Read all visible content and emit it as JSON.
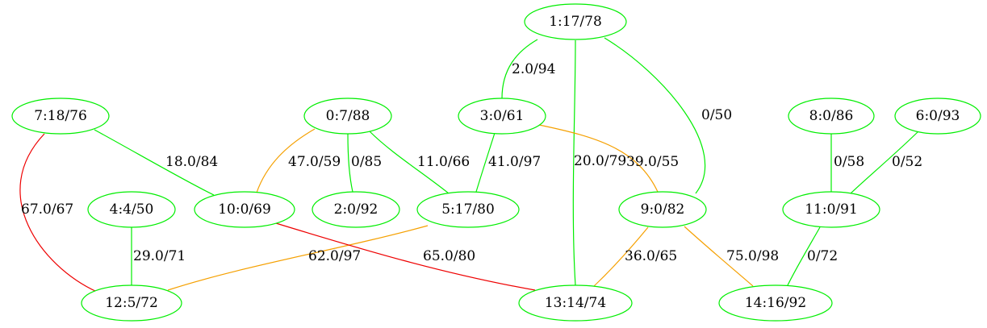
{
  "colors": {
    "node_stroke": "#00ee00",
    "green": "#00ee00",
    "orange": "#f5a000",
    "red": "#ee0000"
  },
  "nodes": [
    {
      "id": "n1",
      "label": "1:17/78"
    },
    {
      "id": "n7",
      "label": "7:18/76"
    },
    {
      "id": "n0",
      "label": "0:7/88"
    },
    {
      "id": "n3",
      "label": "3:0/61"
    },
    {
      "id": "n8",
      "label": "8:0/86"
    },
    {
      "id": "n6",
      "label": "6:0/93"
    },
    {
      "id": "n4",
      "label": "4:4/50"
    },
    {
      "id": "n10",
      "label": "10:0/69"
    },
    {
      "id": "n2",
      "label": "2:0/92"
    },
    {
      "id": "n5",
      "label": "5:17/80"
    },
    {
      "id": "n9",
      "label": "9:0/82"
    },
    {
      "id": "n11",
      "label": "11:0/91"
    },
    {
      "id": "n12",
      "label": "12:5/72"
    },
    {
      "id": "n13",
      "label": "13:14/74"
    },
    {
      "id": "n14",
      "label": "14:16/92"
    }
  ],
  "edges": [
    {
      "from": "n1",
      "to": "n3",
      "label": "2.0/94",
      "color": "green"
    },
    {
      "from": "n1",
      "to": "n13",
      "label": "20.0/79",
      "color": "green"
    },
    {
      "from": "n1",
      "to": "n9",
      "label": "0/50",
      "color": "green"
    },
    {
      "from": "n7",
      "to": "n10",
      "label": "18.0/84",
      "color": "green"
    },
    {
      "from": "n7",
      "to": "n12",
      "label": "67.0/67",
      "color": "red"
    },
    {
      "from": "n0",
      "to": "n10",
      "label": "47.0/59",
      "color": "orange"
    },
    {
      "from": "n0",
      "to": "n2",
      "label": "0/85",
      "color": "green"
    },
    {
      "from": "n0",
      "to": "n5",
      "label": "11.0/66",
      "color": "green"
    },
    {
      "from": "n3",
      "to": "n5",
      "label": "41.0/97",
      "color": "green"
    },
    {
      "from": "n3",
      "to": "n9",
      "label": "39.0/55",
      "color": "orange"
    },
    {
      "from": "n8",
      "to": "n11",
      "label": "0/58",
      "color": "green"
    },
    {
      "from": "n6",
      "to": "n11",
      "label": "0/52",
      "color": "green"
    },
    {
      "from": "n4",
      "to": "n12",
      "label": "29.0/71",
      "color": "green"
    },
    {
      "from": "n5",
      "to": "n12",
      "label": "62.0/97",
      "color": "orange"
    },
    {
      "from": "n10",
      "to": "n13",
      "label": "65.0/80",
      "color": "red"
    },
    {
      "from": "n9",
      "to": "n13",
      "label": "36.0/65",
      "color": "orange"
    },
    {
      "from": "n9",
      "to": "n14",
      "label": "75.0/98",
      "color": "orange"
    },
    {
      "from": "n11",
      "to": "n14",
      "label": "0/72",
      "color": "green"
    }
  ]
}
